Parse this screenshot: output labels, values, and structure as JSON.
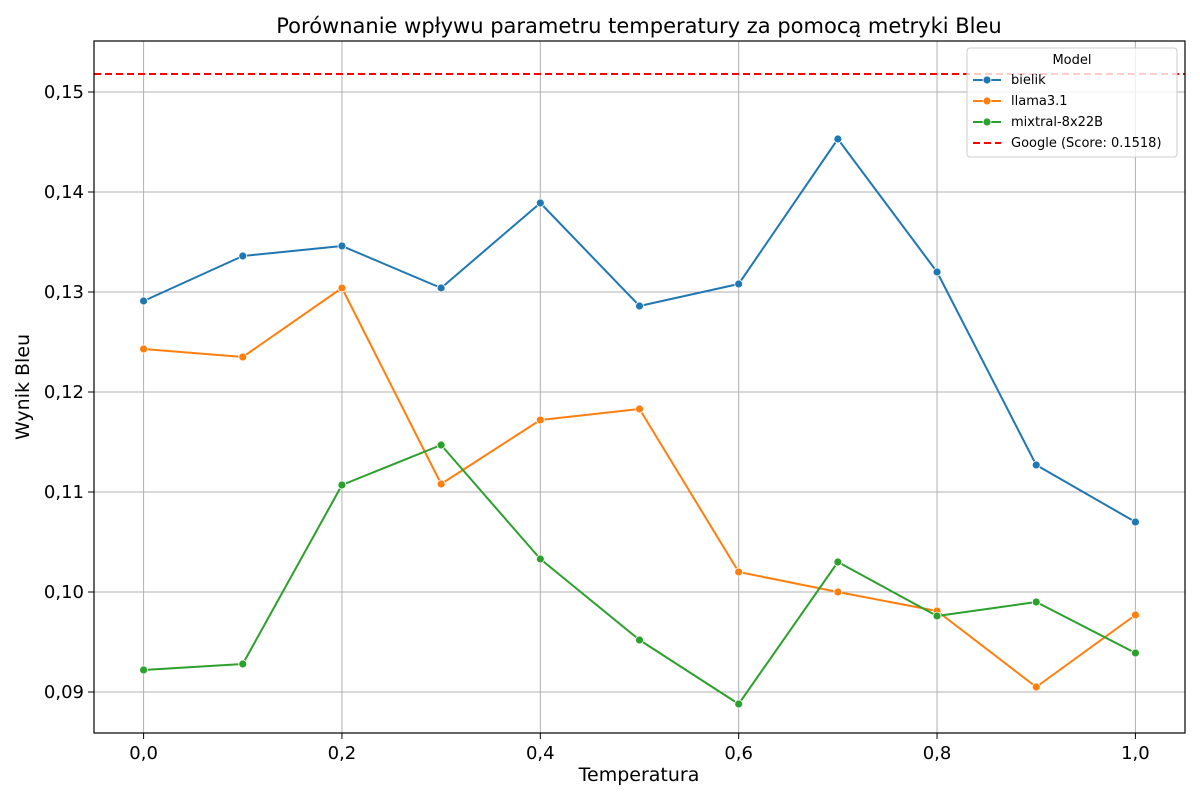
{
  "chart_data": {
    "type": "line",
    "title": "Porównanie wpływu parametru temperatury za pomocą metryki Bleu",
    "xlabel": "Temperatura",
    "ylabel": "Wynik Bleu",
    "x": [
      0.0,
      0.1,
      0.2,
      0.3,
      0.4,
      0.5,
      0.6,
      0.7,
      0.8,
      0.9,
      1.0
    ],
    "xlim": [
      -0.05,
      1.05
    ],
    "ylim": [
      0.0859,
      0.1551
    ],
    "x_ticks": [
      "0,0",
      "0,2",
      "0,4",
      "0,6",
      "0,8",
      "1,0"
    ],
    "y_ticks": [
      "0,09",
      "0,10",
      "0,11",
      "0,12",
      "0,13",
      "0,14",
      "0,15"
    ],
    "grid": true,
    "legend": {
      "title": "Model",
      "position": "top-right"
    },
    "series": [
      {
        "name": "bielik",
        "color": "#1f77b4",
        "marker": "circle",
        "values": [
          0.1291,
          0.1336,
          0.1346,
          0.1304,
          0.1389,
          0.1286,
          0.1308,
          0.1453,
          0.132,
          0.1127,
          0.107
        ]
      },
      {
        "name": "llama3.1",
        "color": "#ff7f0e",
        "marker": "circle",
        "values": [
          0.1243,
          0.1235,
          0.1304,
          0.1108,
          0.1172,
          0.1183,
          0.102,
          0.1,
          0.0981,
          0.0905,
          0.0977
        ]
      },
      {
        "name": "mixtral-8x22B",
        "color": "#2ca02c",
        "marker": "circle",
        "values": [
          0.0922,
          0.0928,
          0.1107,
          0.1147,
          0.1033,
          0.0952,
          0.0888,
          0.103,
          0.0976,
          0.099,
          0.0939
        ]
      }
    ],
    "reference_lines": [
      {
        "name": "Google (Score: 0.1518)",
        "y": 0.1518,
        "color": "#ff0000",
        "style": "dashed"
      }
    ]
  }
}
